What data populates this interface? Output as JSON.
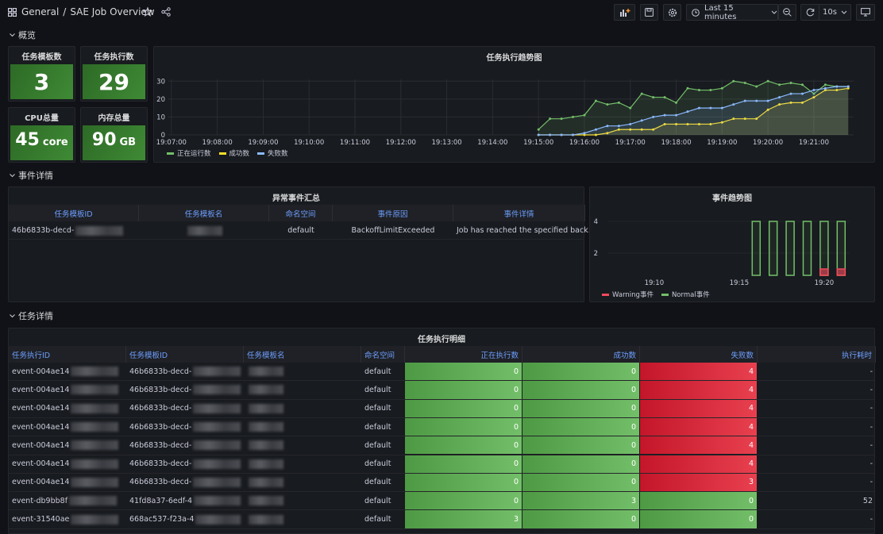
{
  "header": {
    "breadcrumb": [
      "General",
      "SAE Job Overview"
    ],
    "separator": "/",
    "time_range": "Last 15 minutes",
    "refresh_interval": "10s"
  },
  "rows": [
    "概览",
    "事件详情",
    "任务详情"
  ],
  "stats": [
    {
      "title": "任务模板数",
      "value": 3
    },
    {
      "title": "任务执行数",
      "value": 29
    },
    {
      "title": "CPU总量",
      "value": 45,
      "unit": "core"
    },
    {
      "title": "内存总量",
      "value": 90,
      "unit": "GB"
    }
  ],
  "trend_chart": {
    "type": "line",
    "title": "任务执行趋势图",
    "x": [
      "19:15:00",
      "19:15:15",
      "19:15:30",
      "19:15:45",
      "19:16:00",
      "19:16:15",
      "19:16:30",
      "19:16:45",
      "19:17:00",
      "19:17:15",
      "19:17:30",
      "19:17:45",
      "19:18:00",
      "19:18:15",
      "19:18:30",
      "19:18:45",
      "19:19:00",
      "19:19:15",
      "19:19:30",
      "19:19:45",
      "19:20:00",
      "19:20:15",
      "19:20:30",
      "19:20:45",
      "19:21:00",
      "19:21:15",
      "19:21:30",
      "19:21:45"
    ],
    "xlim": [
      "19:06:56",
      "19:21:52"
    ],
    "xticks": [
      "19:07:00",
      "19:08:00",
      "19:09:00",
      "19:10:00",
      "19:11:00",
      "19:12:00",
      "19:13:00",
      "19:14:00",
      "19:15:00",
      "19:16:00",
      "19:17:00",
      "19:18:00",
      "19:19:00",
      "19:20:00",
      "19:21:00"
    ],
    "ylim": [
      0,
      31
    ],
    "yticks": [
      0,
      10,
      20,
      30
    ],
    "grid": true,
    "legend": "bottom-left",
    "series": [
      {
        "name": "正在运行数",
        "color": "#73bf69",
        "values": [
          3,
          9,
          9,
          10,
          11,
          19,
          17,
          18,
          15,
          23,
          21,
          21,
          18,
          26,
          25,
          25,
          26,
          30,
          29,
          27,
          30,
          28,
          29,
          28,
          23,
          28,
          27,
          27
        ]
      },
      {
        "name": "成功数",
        "color": "#fade2a",
        "values": [
          0,
          0,
          0,
          0,
          0,
          0,
          1,
          3,
          3,
          3,
          3,
          6,
          6,
          6,
          6,
          6,
          7,
          9,
          9,
          9,
          14,
          17,
          18,
          18,
          21,
          25,
          25,
          26
        ]
      },
      {
        "name": "失败数",
        "color": "#8ab8ff",
        "values": [
          0,
          0,
          0,
          0,
          1,
          3,
          5,
          5,
          6,
          8,
          10,
          11,
          11,
          13,
          15,
          15,
          15,
          17,
          19,
          19,
          19,
          21,
          23,
          23,
          25,
          26,
          27,
          27
        ]
      }
    ]
  },
  "event_chart": {
    "type": "bar",
    "title": "事件趋势图",
    "x": [
      "19:16",
      "19:17",
      "19:18",
      "19:19",
      "19:20",
      "19:21"
    ],
    "xlim": [
      "19:07:15",
      "19:21:30"
    ],
    "xticks": [
      "19:10",
      "19:15",
      "19:20"
    ],
    "ylim": [
      0.6,
      4.2
    ],
    "yticks": [
      2,
      4
    ],
    "legend": "bottom-left",
    "series": [
      {
        "name": "Warning事件",
        "color": "#f2495c",
        "values": [
          null,
          null,
          null,
          null,
          1,
          1
        ]
      },
      {
        "name": "Normal事件",
        "color": "#73bf69",
        "values": [
          4,
          4,
          4,
          4,
          4,
          4
        ]
      }
    ]
  },
  "event_table": {
    "title": "异常事件汇总",
    "columns": [
      "任务模板ID",
      "任务模板名",
      "命名空间",
      "事件原因",
      "事件详情"
    ],
    "rows": [
      [
        "46b6833b-decd-",
        null,
        "default",
        "BackoffLimitExceeded",
        "Job has reached the specified back…"
      ]
    ]
  },
  "job_table": {
    "title": "任务执行明细",
    "columns": [
      "任务执行ID",
      "任务模板ID",
      "任务模板名",
      "命名空间",
      "正在执行数",
      "成功数",
      "失败数",
      "执行耗时"
    ],
    "rows": [
      [
        "event-004ae14",
        "46b6833b-decd-",
        null,
        "default",
        0,
        0,
        4,
        "-"
      ],
      [
        "event-004ae14",
        "46b6833b-decd-",
        null,
        "default",
        0,
        0,
        4,
        "-"
      ],
      [
        "event-004ae14",
        "46b6833b-decd-",
        null,
        "default",
        0,
        0,
        4,
        "-"
      ],
      [
        "event-004ae14",
        "46b6833b-decd-",
        null,
        "default",
        0,
        0,
        4,
        "-"
      ],
      [
        "event-004ae14",
        "46b6833b-decd-",
        null,
        "default",
        0,
        0,
        4,
        "-"
      ],
      [
        "event-004ae14",
        "46b6833b-decd-",
        null,
        "default",
        0,
        0,
        4,
        "-"
      ],
      [
        "event-004ae14",
        "46b6833b-decd-",
        null,
        "default",
        0,
        0,
        3,
        "-"
      ],
      [
        "event-db9bb8f",
        "41fd8a37-6edf-4",
        null,
        "default",
        0,
        3,
        0,
        52
      ],
      [
        "event-31540ae",
        "668ac537-f23a-4",
        null,
        "default",
        3,
        0,
        0,
        "-"
      ]
    ]
  }
}
